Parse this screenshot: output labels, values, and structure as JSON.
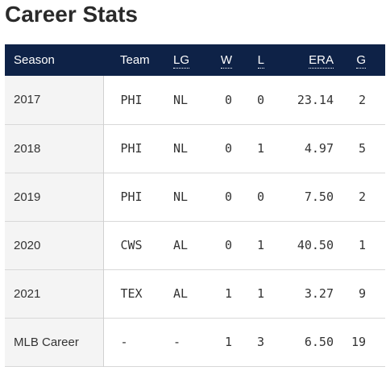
{
  "page": {
    "title": "Career Stats"
  },
  "table": {
    "headers": {
      "season": "Season",
      "team": "Team",
      "lg": "LG",
      "w": "W",
      "l": "L",
      "era": "ERA",
      "g": "G"
    },
    "rows": [
      {
        "season": "2017",
        "team": "PHI",
        "lg": "NL",
        "w": "0",
        "l": "0",
        "era": "23.14",
        "g": "2"
      },
      {
        "season": "2018",
        "team": "PHI",
        "lg": "NL",
        "w": "0",
        "l": "1",
        "era": "4.97",
        "g": "5"
      },
      {
        "season": "2019",
        "team": "PHI",
        "lg": "NL",
        "w": "0",
        "l": "0",
        "era": "7.50",
        "g": "2"
      },
      {
        "season": "2020",
        "team": "CWS",
        "lg": "AL",
        "w": "0",
        "l": "1",
        "era": "40.50",
        "g": "1"
      },
      {
        "season": "2021",
        "team": "TEX",
        "lg": "AL",
        "w": "1",
        "l": "1",
        "era": "3.27",
        "g": "9"
      },
      {
        "season": "MLB Career",
        "team": "-",
        "lg": "-",
        "w": "1",
        "l": "3",
        "era": "6.50",
        "g": "19"
      }
    ]
  },
  "colors": {
    "header_bg": "#0e2247",
    "header_text": "#ffffff",
    "season_col_bg": "#f4f4f4",
    "row_divider": "#d8d8d8",
    "title_text": "#2a2a2a"
  }
}
